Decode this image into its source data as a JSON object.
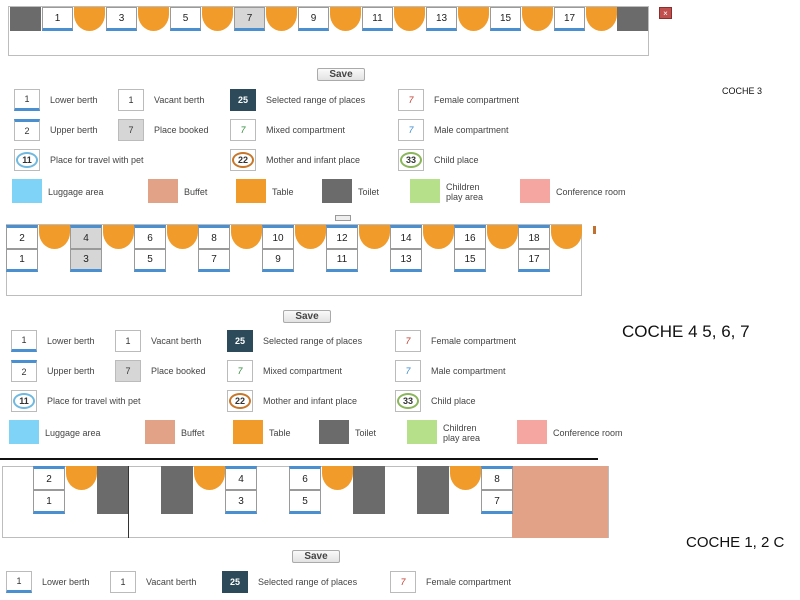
{
  "save_label": "Save",
  "coche_labels": {
    "coche3": "COCHE 3",
    "coche4": "COCHE 4 5, 6, 7",
    "coche12": "COCHE 1, 2 C"
  },
  "close_glyph": "×",
  "coach_a": {
    "seats": [
      "1",
      "3",
      "5",
      "7",
      "9",
      "11",
      "13",
      "15",
      "17"
    ],
    "booked": [
      "7"
    ]
  },
  "coach_b": {
    "upper": [
      "2",
      "4",
      "6",
      "8",
      "10",
      "12",
      "14",
      "16",
      "18"
    ],
    "lower": [
      "1",
      "3",
      "5",
      "7",
      "9",
      "11",
      "13",
      "15",
      "17"
    ],
    "booked": [
      "4",
      "3"
    ]
  },
  "coach_c": {
    "upper": [
      "2",
      "4",
      "6",
      "8"
    ],
    "lower": [
      "1",
      "3",
      "5",
      "7"
    ]
  },
  "legend": {
    "lower_berth": {
      "sample": "1",
      "label": "Lower berth"
    },
    "vacant": {
      "sample": "1",
      "label": "Vacant berth"
    },
    "selected": {
      "sample": "25",
      "label": "Selected range of places"
    },
    "female": {
      "sample": "7",
      "label": "Female compartment"
    },
    "upper_berth": {
      "sample": "2",
      "label": "Upper berth"
    },
    "booked": {
      "sample": "7",
      "label": "Place booked"
    },
    "mixed": {
      "sample": "7",
      "label": "Mixed compartment"
    },
    "male": {
      "sample": "7",
      "label": "Male compartment"
    },
    "pet": {
      "sample": "11",
      "label": "Place for travel with pet"
    },
    "mother": {
      "sample": "22",
      "label": "Mother and infant place"
    },
    "child": {
      "sample": "33",
      "label": "Child place"
    },
    "luggage": {
      "label": "Luggage area"
    },
    "buffet": {
      "label": "Buffet"
    },
    "table": {
      "label": "Table"
    },
    "toilet": {
      "label": "Toilet"
    },
    "children_l1": "Children",
    "children_l2": "play area",
    "conference": {
      "label": "Conference room"
    }
  },
  "colors": {
    "luggage": "#7fd3f7",
    "buffet": "#e2a288",
    "table": "#f09b2a",
    "toilet": "#6b6b6b",
    "children": "#b6e08a",
    "conference": "#f6a6a0",
    "pet": "#6fb8e0",
    "mother": "#c8772a",
    "child": "#8bb55a"
  }
}
